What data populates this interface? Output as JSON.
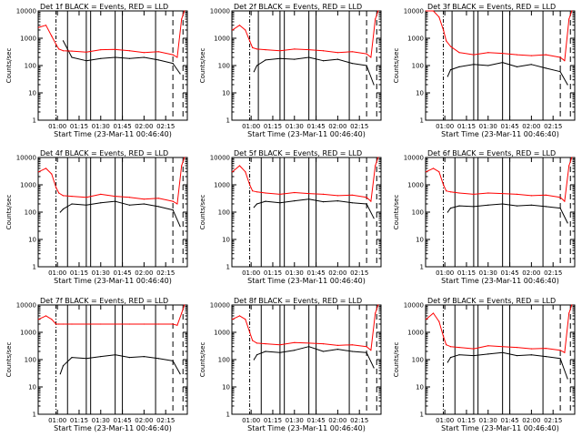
{
  "figure": {
    "x_tick_labels": [
      "01:00",
      "01:15",
      "01:30",
      "01:45",
      "02:00",
      "02:15"
    ],
    "y_tick_labels": [
      "1",
      "10",
      "100",
      "1000",
      "10000"
    ],
    "xlabel": "Start Time (23-Mar-11 00:46:40)",
    "ylabel": "Counts/sec",
    "colors": {
      "events": "#000000",
      "lld": "#ff0000",
      "axes": "#000000"
    }
  },
  "chart_data": [
    {
      "type": "line",
      "title": "Det 1f BLACK = Events, RED = LLD",
      "xlabel": "Start Time (23-Mar-11 00:46:40)",
      "ylabel": "Counts/sec",
      "xlim_min": [
        46.67,
        150
      ],
      "ylim": [
        1,
        10000
      ],
      "yscale": "log",
      "series": [
        {
          "name": "Events",
          "color": "#000000",
          "x": [
            47,
            52,
            56,
            59,
            61,
            64,
            70,
            80,
            90,
            100,
            110,
            120,
            130,
            140,
            145,
            146
          ],
          "y": [
            null,
            null,
            null,
            null,
            null,
            800,
            200,
            150,
            180,
            200,
            180,
            200,
            160,
            120,
            50,
            null
          ]
        },
        {
          "name": "LLD",
          "color": "#ff0000",
          "x": [
            47,
            52,
            56,
            59,
            61,
            64,
            70,
            80,
            90,
            100,
            110,
            120,
            130,
            140,
            143,
            146,
            148,
            150
          ],
          "y": [
            2500,
            3000,
            1200,
            600,
            400,
            350,
            340,
            310,
            380,
            390,
            350,
            300,
            320,
            250,
            200,
            5000,
            15000,
            null
          ]
        }
      ],
      "vlines_dashdot": [
        59
      ],
      "vlines_solid": [
        67,
        80,
        83,
        100,
        105,
        128
      ],
      "vlines_dashed": [
        140,
        147
      ]
    },
    {
      "type": "line",
      "title": "Det 2f BLACK = Events, RED = LLD",
      "xlabel": "Start Time (23-Mar-11 00:46:40)",
      "ylabel": "Counts/sec",
      "xlim_min": [
        46.67,
        150
      ],
      "ylim": [
        1,
        10000
      ],
      "yscale": "log",
      "series": [
        {
          "name": "Events",
          "color": "#000000",
          "x": [
            62,
            64,
            70,
            80,
            90,
            100,
            110,
            120,
            130,
            140,
            145
          ],
          "y": [
            60,
            100,
            160,
            180,
            170,
            200,
            150,
            170,
            120,
            100,
            20
          ]
        },
        {
          "name": "LLD",
          "color": "#ff0000",
          "x": [
            47,
            52,
            56,
            59,
            61,
            64,
            70,
            80,
            90,
            100,
            110,
            120,
            130,
            140,
            143,
            146,
            148
          ],
          "y": [
            2000,
            3000,
            2000,
            800,
            450,
            400,
            380,
            350,
            400,
            380,
            350,
            300,
            320,
            270,
            200,
            5000,
            15000
          ]
        }
      ],
      "vlines_dashdot": [
        59
      ],
      "vlines_solid": [
        65,
        80,
        83,
        100,
        105,
        128
      ],
      "vlines_dashed": [
        140,
        147
      ]
    },
    {
      "type": "line",
      "title": "Det 3f BLACK = Events, RED = LLD",
      "xlabel": "Start Time (23-Mar-11 00:46:40)",
      "ylabel": "Counts/sec",
      "xlim_min": [
        46.67,
        150
      ],
      "ylim": [
        1,
        10000
      ],
      "yscale": "log",
      "series": [
        {
          "name": "Events",
          "color": "#000000",
          "x": [
            62,
            64,
            70,
            80,
            90,
            100,
            110,
            120,
            130,
            140,
            145
          ],
          "y": [
            40,
            70,
            90,
            110,
            100,
            130,
            90,
            110,
            80,
            60,
            20
          ]
        },
        {
          "name": "LLD",
          "color": "#ff0000",
          "x": [
            47,
            52,
            56,
            59,
            61,
            64,
            70,
            80,
            90,
            100,
            110,
            120,
            130,
            140,
            143,
            146,
            148
          ],
          "y": [
            10000,
            12000,
            6000,
            2000,
            800,
            500,
            300,
            250,
            300,
            280,
            250,
            230,
            250,
            200,
            150,
            5000,
            15000
          ]
        }
      ],
      "vlines_dashdot": [
        59
      ],
      "vlines_solid": [
        65,
        80,
        83,
        100,
        105,
        128
      ],
      "vlines_dashed": [
        140,
        147
      ]
    },
    {
      "type": "line",
      "title": "Det 4f BLACK = Events, RED = LLD",
      "xlabel": "Start Time (23-Mar-11 00:46:40)",
      "ylabel": "Counts/sec",
      "xlim_min": [
        46.67,
        150
      ],
      "ylim": [
        1,
        10000
      ],
      "yscale": "log",
      "series": [
        {
          "name": "Events",
          "color": "#000000",
          "x": [
            62,
            64,
            70,
            80,
            90,
            100,
            110,
            120,
            130,
            140,
            145
          ],
          "y": [
            100,
            130,
            200,
            180,
            220,
            250,
            180,
            200,
            160,
            120,
            30
          ]
        },
        {
          "name": "LLD",
          "color": "#ff0000",
          "x": [
            47,
            52,
            56,
            59,
            61,
            64,
            70,
            80,
            90,
            100,
            110,
            120,
            130,
            140,
            143,
            146,
            148
          ],
          "y": [
            3000,
            4000,
            2500,
            800,
            500,
            400,
            380,
            350,
            450,
            380,
            350,
            300,
            320,
            250,
            200,
            5000,
            15000
          ]
        }
      ],
      "vlines_dashdot": [
        59
      ],
      "vlines_solid": [
        67,
        80,
        83,
        100,
        105,
        128
      ],
      "vlines_dashed": [
        140,
        147
      ]
    },
    {
      "type": "line",
      "title": "Det 5f BLACK = Events, RED = LLD",
      "xlabel": "Start Time (23-Mar-11 00:46:40)",
      "ylabel": "Counts/sec",
      "xlim_min": [
        46.67,
        150
      ],
      "ylim": [
        1,
        10000
      ],
      "yscale": "log",
      "series": [
        {
          "name": "Events",
          "color": "#000000",
          "x": [
            62,
            64,
            70,
            80,
            90,
            100,
            110,
            120,
            130,
            140,
            145
          ],
          "y": [
            150,
            200,
            250,
            220,
            260,
            300,
            240,
            260,
            220,
            200,
            60
          ]
        },
        {
          "name": "LLD",
          "color": "#ff0000",
          "x": [
            47,
            52,
            56,
            59,
            61,
            64,
            70,
            80,
            90,
            100,
            110,
            120,
            130,
            140,
            143,
            146,
            148
          ],
          "y": [
            3000,
            5000,
            3000,
            1000,
            600,
            550,
            500,
            450,
            520,
            480,
            450,
            400,
            420,
            350,
            250,
            5000,
            15000
          ]
        }
      ],
      "vlines_dashdot": [
        59
      ],
      "vlines_solid": [
        67,
        80,
        83,
        100,
        105,
        128
      ],
      "vlines_dashed": [
        140,
        147
      ]
    },
    {
      "type": "line",
      "title": "Det 6f BLACK = Events, RED = LLD",
      "xlabel": "Start Time (23-Mar-11 00:46:40)",
      "ylabel": "Counts/sec",
      "xlim_min": [
        46.67,
        150
      ],
      "ylim": [
        1,
        10000
      ],
      "yscale": "log",
      "series": [
        {
          "name": "Events",
          "color": "#000000",
          "x": [
            62,
            64,
            70,
            80,
            90,
            100,
            110,
            120,
            130,
            140,
            145
          ],
          "y": [
            100,
            140,
            170,
            160,
            180,
            200,
            170,
            180,
            160,
            140,
            40
          ]
        },
        {
          "name": "LLD",
          "color": "#ff0000",
          "x": [
            47,
            52,
            56,
            59,
            61,
            64,
            70,
            80,
            90,
            100,
            110,
            120,
            130,
            140,
            143,
            146,
            148
          ],
          "y": [
            3000,
            4000,
            3000,
            1000,
            600,
            550,
            500,
            450,
            500,
            480,
            450,
            400,
            420,
            350,
            250,
            5000,
            15000
          ]
        }
      ],
      "vlines_dashdot": [
        59
      ],
      "vlines_solid": [
        67,
        80,
        83,
        100,
        105,
        128
      ],
      "vlines_dashed": [
        140,
        147
      ]
    },
    {
      "type": "line",
      "title": "Det 7f BLACK = Events, RED = LLD",
      "xlabel": "Start Time (23-Mar-11 00:46:40)",
      "ylabel": "Counts/sec",
      "xlim_min": [
        46.67,
        150
      ],
      "ylim": [
        1,
        10000
      ],
      "yscale": "log",
      "series": [
        {
          "name": "Events",
          "color": "#000000",
          "x": [
            62,
            64,
            70,
            80,
            90,
            100,
            110,
            120,
            130,
            140,
            145
          ],
          "y": [
            30,
            60,
            120,
            110,
            130,
            150,
            120,
            130,
            110,
            90,
            30
          ]
        },
        {
          "name": "LLD",
          "color": "#ff0000",
          "x": [
            47,
            52,
            56,
            59,
            61,
            64,
            70,
            80,
            90,
            100,
            110,
            120,
            130,
            140,
            143,
            146,
            148
          ],
          "y": [
            3000,
            4000,
            3000,
            2000,
            2000,
            2000,
            2000,
            2000,
            2000,
            2000,
            2000,
            2000,
            2000,
            2000,
            1800,
            5000,
            15000
          ]
        }
      ],
      "vlines_dashdot": [
        59
      ],
      "vlines_solid": [
        67,
        80,
        83,
        100,
        105,
        128
      ],
      "vlines_dashed": [
        140,
        147
      ]
    },
    {
      "type": "line",
      "title": "Det 8f BLACK = Events, RED = LLD",
      "xlabel": "Start Time (23-Mar-11 00:46:40)",
      "ylabel": "Counts/sec",
      "xlim_min": [
        46.67,
        150
      ],
      "ylim": [
        1,
        10000
      ],
      "yscale": "log",
      "series": [
        {
          "name": "Events",
          "color": "#000000",
          "x": [
            62,
            64,
            70,
            80,
            90,
            100,
            110,
            120,
            130,
            140,
            145
          ],
          "y": [
            100,
            150,
            200,
            180,
            220,
            300,
            200,
            240,
            200,
            180,
            50
          ]
        },
        {
          "name": "LLD",
          "color": "#ff0000",
          "x": [
            47,
            52,
            56,
            59,
            61,
            64,
            70,
            80,
            90,
            100,
            110,
            120,
            130,
            140,
            143,
            146,
            148
          ],
          "y": [
            3000,
            4000,
            3000,
            1000,
            500,
            400,
            380,
            350,
            420,
            400,
            380,
            330,
            350,
            300,
            220,
            5000,
            15000
          ]
        }
      ],
      "vlines_dashdot": [
        59
      ],
      "vlines_solid": [
        67,
        80,
        83,
        100,
        105,
        128
      ],
      "vlines_dashed": [
        140,
        147
      ]
    },
    {
      "type": "line",
      "title": "Det 9f BLACK = Events, RED = LLD",
      "xlabel": "Start Time (23-Mar-11 00:46:40)",
      "ylabel": "Counts/sec",
      "xlim_min": [
        46.67,
        150
      ],
      "ylim": [
        1,
        10000
      ],
      "yscale": "log",
      "series": [
        {
          "name": "Events",
          "color": "#000000",
          "x": [
            62,
            64,
            70,
            80,
            90,
            100,
            110,
            120,
            130,
            140,
            145
          ],
          "y": [
            80,
            120,
            150,
            140,
            160,
            180,
            140,
            150,
            130,
            110,
            20
          ]
        },
        {
          "name": "LLD",
          "color": "#ff0000",
          "x": [
            47,
            52,
            56,
            59,
            61,
            64,
            70,
            80,
            90,
            100,
            110,
            120,
            130,
            140,
            143,
            146,
            148
          ],
          "y": [
            3000,
            5000,
            2500,
            700,
            350,
            300,
            280,
            250,
            320,
            300,
            280,
            250,
            260,
            220,
            180,
            5000,
            15000
          ]
        }
      ],
      "vlines_dashdot": [
        59
      ],
      "vlines_solid": [
        67,
        80,
        83,
        100,
        105,
        128
      ],
      "vlines_dashed": [
        140,
        147
      ]
    }
  ]
}
